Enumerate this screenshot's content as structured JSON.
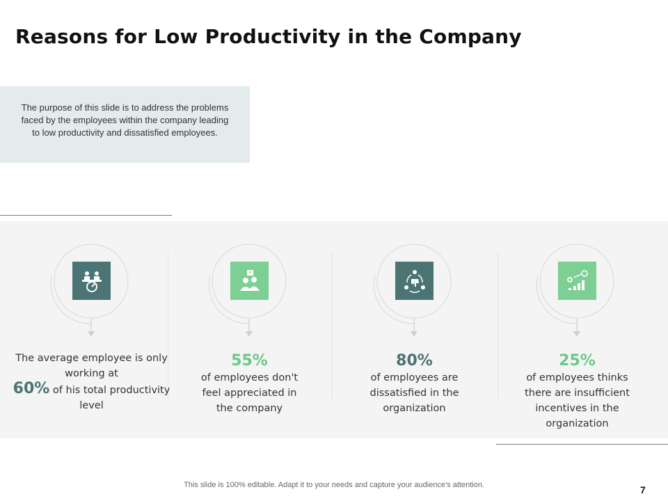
{
  "slide": {
    "title": "Reasons for Low Productivity in the Company",
    "purpose": "The purpose of this slide is to address the problems faced by the employees within the company leading to low productivity and dissatisfied employees."
  },
  "items": [
    {
      "icon": "meeting-speedometer-icon",
      "lead": "The average employee is only working at",
      "percent": "60%",
      "trail": "of his total productivity level",
      "accent": "#4b7474"
    },
    {
      "icon": "employees-alert-icon",
      "lead": "",
      "percent": "55%",
      "trail": "of employees don't feel appreciated in the company",
      "accent": "#6bc985"
    },
    {
      "icon": "dislike-cycle-icon",
      "lead": "",
      "percent": "80%",
      "trail": "of employees are dissatisfied in the organization",
      "accent": "#4b7474"
    },
    {
      "icon": "incentive-growth-icon",
      "lead": "",
      "percent": "25%",
      "trail": "of employees thinks there are insufficient incentives in the organization",
      "accent": "#6bc985"
    }
  ],
  "footer": {
    "note": "This slide is 100% editable. Adapt it to your needs and capture your audience's attention.",
    "page_number": "7"
  }
}
